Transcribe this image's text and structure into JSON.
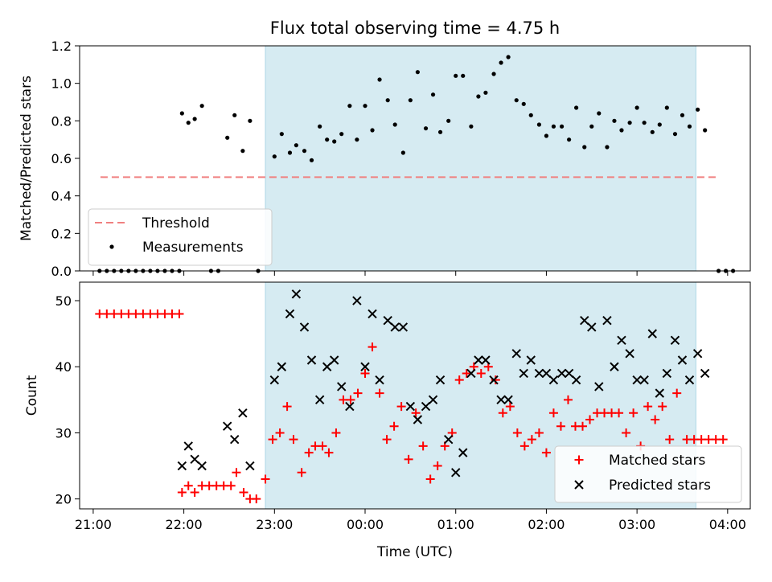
{
  "chart_data": [
    {
      "type": "scatter",
      "title": "Flux total observing time = 4.75 h",
      "xlabel": "",
      "ylabel": "Matched/Predicted stars",
      "ylim": [
        0,
        1.2
      ],
      "yticks": [
        "0.0",
        "0.2",
        "0.4",
        "0.6",
        "0.8",
        "1.0",
        "1.2"
      ],
      "xlim_hours": [
        20.85,
        28.25
      ],
      "shaded_span_hours": [
        22.9,
        27.65
      ],
      "shade_color": "#add8e6",
      "threshold": {
        "name": "Threshold",
        "value": 0.5,
        "x_range_hours": [
          21.08,
          27.9
        ],
        "color": "#f08080"
      },
      "legend": {
        "position": "lower-left",
        "entries": [
          "Threshold",
          "Measurements"
        ]
      },
      "series": [
        {
          "name": "Measurements",
          "color": "#000000",
          "points": [
            [
              21.07,
              0
            ],
            [
              21.15,
              0
            ],
            [
              21.23,
              0
            ],
            [
              21.31,
              0
            ],
            [
              21.39,
              0
            ],
            [
              21.47,
              0
            ],
            [
              21.55,
              0
            ],
            [
              21.63,
              0
            ],
            [
              21.71,
              0
            ],
            [
              21.79,
              0
            ],
            [
              21.87,
              0
            ],
            [
              21.95,
              0
            ],
            [
              21.98,
              0.84
            ],
            [
              22.05,
              0.79
            ],
            [
              22.12,
              0.81
            ],
            [
              22.2,
              0.88
            ],
            [
              22.3,
              0
            ],
            [
              22.38,
              0
            ],
            [
              22.48,
              0.71
            ],
            [
              22.56,
              0.83
            ],
            [
              22.65,
              0.64
            ],
            [
              22.73,
              0.8
            ],
            [
              22.82,
              0
            ],
            [
              23.0,
              0.61
            ],
            [
              23.08,
              0.73
            ],
            [
              23.17,
              0.63
            ],
            [
              23.24,
              0.67
            ],
            [
              23.33,
              0.64
            ],
            [
              23.41,
              0.59
            ],
            [
              23.5,
              0.77
            ],
            [
              23.58,
              0.7
            ],
            [
              23.66,
              0.69
            ],
            [
              23.74,
              0.73
            ],
            [
              23.83,
              0.88
            ],
            [
              23.91,
              0.7
            ],
            [
              24.0,
              0.88
            ],
            [
              24.08,
              0.75
            ],
            [
              24.16,
              1.02
            ],
            [
              24.25,
              0.91
            ],
            [
              24.33,
              0.78
            ],
            [
              24.42,
              0.63
            ],
            [
              24.5,
              0.91
            ],
            [
              24.58,
              1.06
            ],
            [
              24.67,
              0.76
            ],
            [
              24.75,
              0.94
            ],
            [
              24.83,
              0.74
            ],
            [
              24.92,
              0.8
            ],
            [
              25.0,
              1.04
            ],
            [
              25.08,
              1.04
            ],
            [
              25.17,
              0.77
            ],
            [
              25.25,
              0.93
            ],
            [
              25.33,
              0.95
            ],
            [
              25.42,
              1.05
            ],
            [
              25.5,
              1.11
            ],
            [
              25.58,
              1.14
            ],
            [
              25.67,
              0.91
            ],
            [
              25.75,
              0.89
            ],
            [
              25.83,
              0.83
            ],
            [
              25.92,
              0.78
            ],
            [
              26.0,
              0.72
            ],
            [
              26.08,
              0.77
            ],
            [
              26.17,
              0.77
            ],
            [
              26.25,
              0.7
            ],
            [
              26.33,
              0.87
            ],
            [
              26.42,
              0.66
            ],
            [
              26.5,
              0.77
            ],
            [
              26.58,
              0.84
            ],
            [
              26.67,
              0.66
            ],
            [
              26.75,
              0.8
            ],
            [
              26.83,
              0.75
            ],
            [
              26.92,
              0.79
            ],
            [
              27.0,
              0.87
            ],
            [
              27.08,
              0.79
            ],
            [
              27.17,
              0.74
            ],
            [
              27.25,
              0.78
            ],
            [
              27.33,
              0.87
            ],
            [
              27.42,
              0.73
            ],
            [
              27.5,
              0.83
            ],
            [
              27.58,
              0.77
            ],
            [
              27.67,
              0.86
            ],
            [
              27.75,
              0.75
            ],
            [
              27.9,
              0
            ],
            [
              27.98,
              0
            ],
            [
              28.06,
              0
            ]
          ]
        }
      ]
    },
    {
      "type": "scatter",
      "title": "",
      "xlabel": "Time (UTC)",
      "ylabel": "Count",
      "ylim": [
        18.5,
        52.8
      ],
      "yticks": [
        "20",
        "30",
        "40",
        "50"
      ],
      "xlim_hours": [
        20.85,
        28.25
      ],
      "xticks": [
        {
          "hour": 21,
          "label": "21:00"
        },
        {
          "hour": 22,
          "label": "22:00"
        },
        {
          "hour": 23,
          "label": "23:00"
        },
        {
          "hour": 24,
          "label": "00:00"
        },
        {
          "hour": 25,
          "label": "01:00"
        },
        {
          "hour": 26,
          "label": "02:00"
        },
        {
          "hour": 27,
          "label": "03:00"
        },
        {
          "hour": 28,
          "label": "04:00"
        }
      ],
      "shaded_span_hours": [
        22.9,
        27.65
      ],
      "shade_color": "#add8e6",
      "legend": {
        "position": "lower-right",
        "entries": [
          "Matched stars",
          "Predicted stars"
        ]
      },
      "series": [
        {
          "name": "Matched stars",
          "marker": "plus",
          "color": "#ff0000",
          "points": [
            [
              21.07,
              48
            ],
            [
              21.15,
              48
            ],
            [
              21.23,
              48
            ],
            [
              21.31,
              48
            ],
            [
              21.39,
              48
            ],
            [
              21.47,
              48
            ],
            [
              21.55,
              48
            ],
            [
              21.63,
              48
            ],
            [
              21.71,
              48
            ],
            [
              21.79,
              48
            ],
            [
              21.87,
              48
            ],
            [
              21.95,
              48
            ],
            [
              21.98,
              21
            ],
            [
              22.05,
              22
            ],
            [
              22.12,
              21
            ],
            [
              22.2,
              22
            ],
            [
              22.28,
              22
            ],
            [
              22.36,
              22
            ],
            [
              22.44,
              22
            ],
            [
              22.52,
              22
            ],
            [
              22.58,
              24
            ],
            [
              22.66,
              21
            ],
            [
              22.73,
              20
            ],
            [
              22.8,
              20
            ],
            [
              22.9,
              23
            ],
            [
              22.98,
              29
            ],
            [
              23.06,
              30
            ],
            [
              23.14,
              34
            ],
            [
              23.21,
              29
            ],
            [
              23.3,
              24
            ],
            [
              23.38,
              27
            ],
            [
              23.45,
              28
            ],
            [
              23.53,
              28
            ],
            [
              23.6,
              27
            ],
            [
              23.68,
              30
            ],
            [
              23.76,
              35
            ],
            [
              23.84,
              35
            ],
            [
              23.92,
              36
            ],
            [
              24.0,
              39
            ],
            [
              24.08,
              43
            ],
            [
              24.16,
              36
            ],
            [
              24.24,
              29
            ],
            [
              24.32,
              31
            ],
            [
              24.4,
              34
            ],
            [
              24.48,
              26
            ],
            [
              24.56,
              33
            ],
            [
              24.64,
              28
            ],
            [
              24.72,
              23
            ],
            [
              24.8,
              25
            ],
            [
              24.88,
              28
            ],
            [
              24.96,
              30
            ],
            [
              25.04,
              38
            ],
            [
              25.12,
              39
            ],
            [
              25.2,
              40
            ],
            [
              25.28,
              39
            ],
            [
              25.36,
              40
            ],
            [
              25.44,
              38
            ],
            [
              25.52,
              33
            ],
            [
              25.6,
              34
            ],
            [
              25.68,
              30
            ],
            [
              25.76,
              28
            ],
            [
              25.84,
              29
            ],
            [
              25.92,
              30
            ],
            [
              26.0,
              27
            ],
            [
              26.08,
              33
            ],
            [
              26.16,
              31
            ],
            [
              26.24,
              35
            ],
            [
              26.32,
              31
            ],
            [
              26.4,
              31
            ],
            [
              26.48,
              32
            ],
            [
              26.56,
              33
            ],
            [
              26.64,
              33
            ],
            [
              26.72,
              33
            ],
            [
              26.8,
              33
            ],
            [
              26.88,
              30
            ],
            [
              26.96,
              33
            ],
            [
              27.04,
              28
            ],
            [
              27.12,
              34
            ],
            [
              27.2,
              32
            ],
            [
              27.28,
              34
            ],
            [
              27.36,
              29
            ],
            [
              27.44,
              36
            ],
            [
              27.55,
              29
            ],
            [
              27.63,
              29
            ],
            [
              27.71,
              29
            ],
            [
              27.79,
              29
            ],
            [
              27.87,
              29
            ],
            [
              27.95,
              29
            ]
          ]
        },
        {
          "name": "Predicted stars",
          "marker": "x",
          "color": "#000000",
          "points": [
            [
              21.98,
              25
            ],
            [
              22.05,
              28
            ],
            [
              22.12,
              26
            ],
            [
              22.2,
              25
            ],
            [
              22.48,
              31
            ],
            [
              22.56,
              29
            ],
            [
              22.65,
              33
            ],
            [
              22.73,
              25
            ],
            [
              23.0,
              38
            ],
            [
              23.08,
              40
            ],
            [
              23.17,
              48
            ],
            [
              23.24,
              51
            ],
            [
              23.33,
              46
            ],
            [
              23.41,
              41
            ],
            [
              23.5,
              35
            ],
            [
              23.58,
              40
            ],
            [
              23.66,
              41
            ],
            [
              23.74,
              37
            ],
            [
              23.83,
              34
            ],
            [
              23.91,
              50
            ],
            [
              24.0,
              40
            ],
            [
              24.08,
              48
            ],
            [
              24.16,
              38
            ],
            [
              24.25,
              47
            ],
            [
              24.33,
              46
            ],
            [
              24.42,
              46
            ],
            [
              24.5,
              34
            ],
            [
              24.58,
              32
            ],
            [
              24.67,
              34
            ],
            [
              24.75,
              35
            ],
            [
              24.83,
              38
            ],
            [
              24.92,
              29
            ],
            [
              25.0,
              24
            ],
            [
              25.08,
              27
            ],
            [
              25.17,
              39
            ],
            [
              25.25,
              41
            ],
            [
              25.33,
              41
            ],
            [
              25.42,
              38
            ],
            [
              25.5,
              35
            ],
            [
              25.58,
              35
            ],
            [
              25.67,
              42
            ],
            [
              25.75,
              39
            ],
            [
              25.83,
              41
            ],
            [
              25.92,
              39
            ],
            [
              26.0,
              39
            ],
            [
              26.08,
              38
            ],
            [
              26.17,
              39
            ],
            [
              26.25,
              39
            ],
            [
              26.33,
              38
            ],
            [
              26.42,
              47
            ],
            [
              26.5,
              46
            ],
            [
              26.58,
              37
            ],
            [
              26.67,
              47
            ],
            [
              26.75,
              40
            ],
            [
              26.83,
              44
            ],
            [
              26.92,
              42
            ],
            [
              27.0,
              38
            ],
            [
              27.08,
              38
            ],
            [
              27.17,
              45
            ],
            [
              27.25,
              36
            ],
            [
              27.33,
              39
            ],
            [
              27.42,
              44
            ],
            [
              27.5,
              41
            ],
            [
              27.58,
              38
            ],
            [
              27.67,
              42
            ],
            [
              27.75,
              39
            ]
          ]
        }
      ]
    }
  ]
}
